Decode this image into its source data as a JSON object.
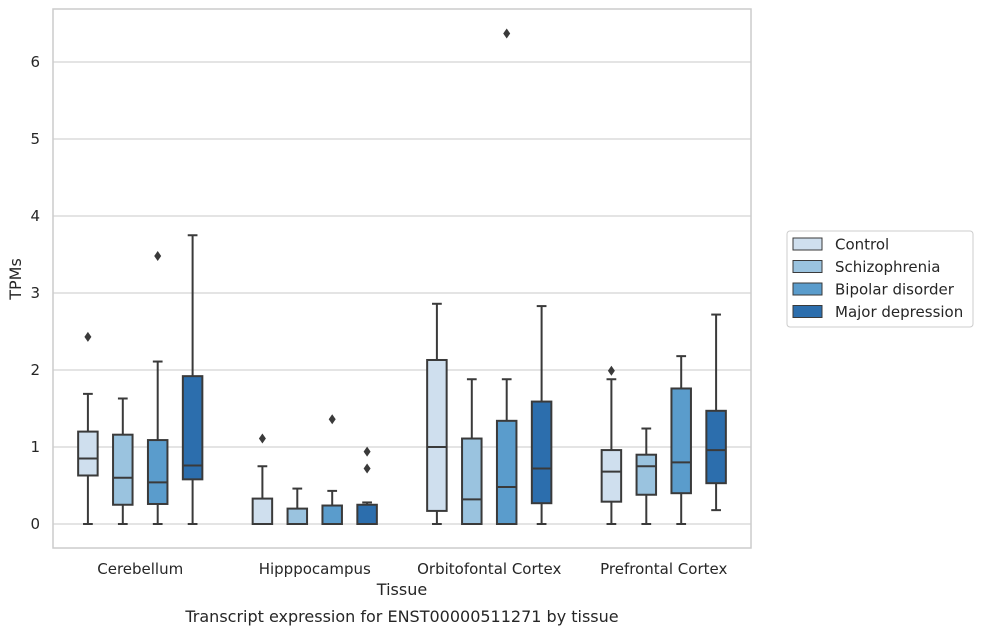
{
  "chart_data": {
    "type": "boxplot",
    "xlabel": "Tissue",
    "ylabel": "TPMs",
    "caption": "Transcript expression for ENST00000511271 by tissue",
    "ylim": [
      -0.3,
      6.7
    ],
    "yticks": [
      0,
      1,
      2,
      3,
      4,
      5,
      6
    ],
    "grid": true,
    "legend_position": "right",
    "categories": [
      "Cerebellum",
      "Hipppocampus",
      "Orbitofontal Cortex",
      "Prefrontal Cortex"
    ],
    "series": [
      {
        "name": "Control",
        "color": "#cfdfee",
        "boxes": [
          {
            "whisker_low": 0.0,
            "q1": 0.63,
            "median": 0.85,
            "q3": 1.2,
            "whisker_high": 1.69,
            "outliers": [
              2.43
            ]
          },
          {
            "whisker_low": 0.0,
            "q1": 0.0,
            "median": 0.0,
            "q3": 0.33,
            "whisker_high": 0.75,
            "outliers": [
              1.11
            ]
          },
          {
            "whisker_low": 0.0,
            "q1": 0.17,
            "median": 1.0,
            "q3": 2.13,
            "whisker_high": 2.86,
            "outliers": []
          },
          {
            "whisker_low": 0.0,
            "q1": 0.29,
            "median": 0.68,
            "q3": 0.96,
            "whisker_high": 1.88,
            "outliers": [
              1.99
            ]
          }
        ]
      },
      {
        "name": "Schizophrenia",
        "color": "#9ac3df",
        "boxes": [
          {
            "whisker_low": 0.0,
            "q1": 0.25,
            "median": 0.6,
            "q3": 1.16,
            "whisker_high": 1.63,
            "outliers": []
          },
          {
            "whisker_low": 0.0,
            "q1": 0.0,
            "median": 0.0,
            "q3": 0.2,
            "whisker_high": 0.46,
            "outliers": []
          },
          {
            "whisker_low": 0.0,
            "q1": 0.0,
            "median": 0.32,
            "q3": 1.11,
            "whisker_high": 1.88,
            "outliers": []
          },
          {
            "whisker_low": 0.0,
            "q1": 0.38,
            "median": 0.75,
            "q3": 0.9,
            "whisker_high": 1.24,
            "outliers": []
          }
        ]
      },
      {
        "name": "Bipolar disorder",
        "color": "#5a9ccc",
        "boxes": [
          {
            "whisker_low": 0.0,
            "q1": 0.26,
            "median": 0.54,
            "q3": 1.09,
            "whisker_high": 2.11,
            "outliers": [
              3.48
            ]
          },
          {
            "whisker_low": 0.0,
            "q1": 0.0,
            "median": 0.0,
            "q3": 0.24,
            "whisker_high": 0.43,
            "outliers": [
              1.36
            ]
          },
          {
            "whisker_low": 0.0,
            "q1": 0.0,
            "median": 0.48,
            "q3": 1.34,
            "whisker_high": 1.88,
            "outliers": [
              6.37
            ]
          },
          {
            "whisker_low": 0.0,
            "q1": 0.4,
            "median": 0.8,
            "q3": 1.76,
            "whisker_high": 2.18,
            "outliers": []
          }
        ]
      },
      {
        "name": "Major depression",
        "color": "#2c6ead",
        "boxes": [
          {
            "whisker_low": 0.0,
            "q1": 0.58,
            "median": 0.76,
            "q3": 1.92,
            "whisker_high": 3.75,
            "outliers": []
          },
          {
            "whisker_low": 0.0,
            "q1": 0.0,
            "median": 0.0,
            "q3": 0.25,
            "whisker_high": 0.28,
            "outliers": [
              0.72,
              0.94
            ]
          },
          {
            "whisker_low": 0.0,
            "q1": 0.27,
            "median": 0.72,
            "q3": 1.59,
            "whisker_high": 2.83,
            "outliers": []
          },
          {
            "whisker_low": 0.18,
            "q1": 0.53,
            "median": 0.96,
            "q3": 1.47,
            "whisker_high": 2.72,
            "outliers": []
          }
        ]
      }
    ]
  }
}
